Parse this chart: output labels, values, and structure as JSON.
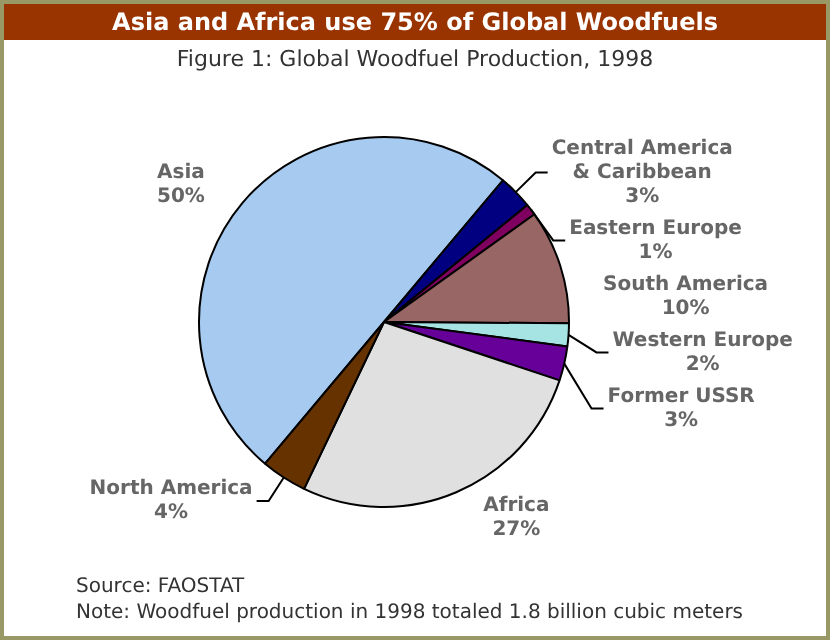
{
  "chart_data": {
    "type": "pie",
    "title": "Asia and Africa use 75% of Global Woodfuels",
    "subtitle": "Figure 1: Global Woodfuel Production, 1998",
    "categories": [
      "Asia",
      "Central America & Caribbean",
      "Eastern Europe",
      "South America",
      "Western Europe",
      "Former USSR",
      "Africa",
      "North America"
    ],
    "values": [
      50,
      3,
      1,
      10,
      2,
      3,
      27,
      4
    ],
    "value_labels": [
      "50%",
      "3%",
      "1%",
      "10%",
      "2%",
      "3%",
      "27%",
      "4%"
    ],
    "colors": [
      "#a6caf0",
      "#000080",
      "#800060",
      "#996666",
      "#a6e3e3",
      "#660099",
      "#e0e0e0",
      "#663300"
    ],
    "legend": false,
    "annotations": [
      "Source: FAOSTAT",
      "Note: Woodfuel production in 1998 totaled 1.8 billion cubic meters"
    ]
  }
}
